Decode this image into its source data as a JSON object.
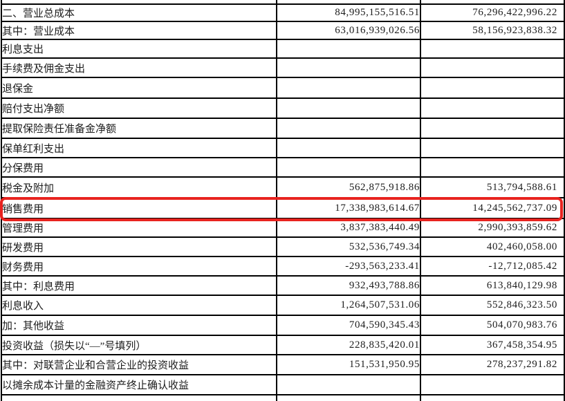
{
  "colors": {
    "highlight": "#e8231f",
    "grid": "#000000",
    "text": "#1c1c1c"
  },
  "table": {
    "description_rows": [
      {
        "label": "二、营业总成本",
        "indent": 0,
        "v1": "84,995,155,516.51",
        "v2": "76,296,422,996.22",
        "highlight": false
      },
      {
        "label": "其中：营业成本",
        "indent": 0,
        "v1": "63,016,939,026.56",
        "v2": "58,156,923,838.32",
        "highlight": false
      },
      {
        "label": "利息支出",
        "indent": 2,
        "v1": "",
        "v2": "",
        "highlight": false
      },
      {
        "label": "手续费及佣金支出",
        "indent": 2,
        "v1": "",
        "v2": "",
        "highlight": false
      },
      {
        "label": "退保金",
        "indent": 2,
        "v1": "",
        "v2": "",
        "highlight": false
      },
      {
        "label": "赔付支出净额",
        "indent": 2,
        "v1": "",
        "v2": "",
        "highlight": false
      },
      {
        "label": "提取保险责任准备金净额",
        "indent": 2,
        "v1": "",
        "v2": "",
        "highlight": false
      },
      {
        "label": "保单红利支出",
        "indent": 2,
        "v1": "",
        "v2": "",
        "highlight": false
      },
      {
        "label": "分保费用",
        "indent": 2,
        "v1": "",
        "v2": "",
        "highlight": false
      },
      {
        "label": "税金及附加",
        "indent": 2,
        "v1": "562,875,918.86",
        "v2": "513,794,588.61",
        "highlight": false
      },
      {
        "label": "销售费用",
        "indent": 2,
        "v1": "17,338,983,614.67",
        "v2": "14,245,562,737.09",
        "highlight": true
      },
      {
        "label": "管理费用",
        "indent": 2,
        "v1": "3,837,383,440.49",
        "v2": "2,990,393,859.62",
        "highlight": false
      },
      {
        "label": "研发费用",
        "indent": 2,
        "v1": "532,536,749.34",
        "v2": "402,460,058.00",
        "highlight": false
      },
      {
        "label": "财务费用",
        "indent": 2,
        "v1": "-293,563,233.41",
        "v2": "-12,712,085.42",
        "highlight": false
      },
      {
        "label": "其中：利息费用",
        "indent": 2,
        "v1": "932,493,788.86",
        "v2": "613,840,129.98",
        "highlight": false
      },
      {
        "label": "利息收入",
        "indent": 3,
        "v1": "1,264,507,531.06",
        "v2": "552,846,323.50",
        "highlight": false
      },
      {
        "label": "加：其他收益",
        "indent": 1,
        "v1": "704,590,345.43",
        "v2": "504,070,983.76",
        "highlight": false
      },
      {
        "label": "投资收益（损失以“—”号填列）",
        "indent": 2,
        "v1": "228,835,420.01",
        "v2": "367,458,354.95",
        "highlight": false
      },
      {
        "label": "其中：对联营企业和合营企业的投资收益",
        "indent": 2,
        "v1": "151,531,950.95",
        "v2": "278,237,291.82",
        "highlight": false
      },
      {
        "label": "以摊余成本计量的金融资产终止确认收益",
        "indent": 3,
        "v1": "",
        "v2": "",
        "highlight": false
      }
    ]
  }
}
